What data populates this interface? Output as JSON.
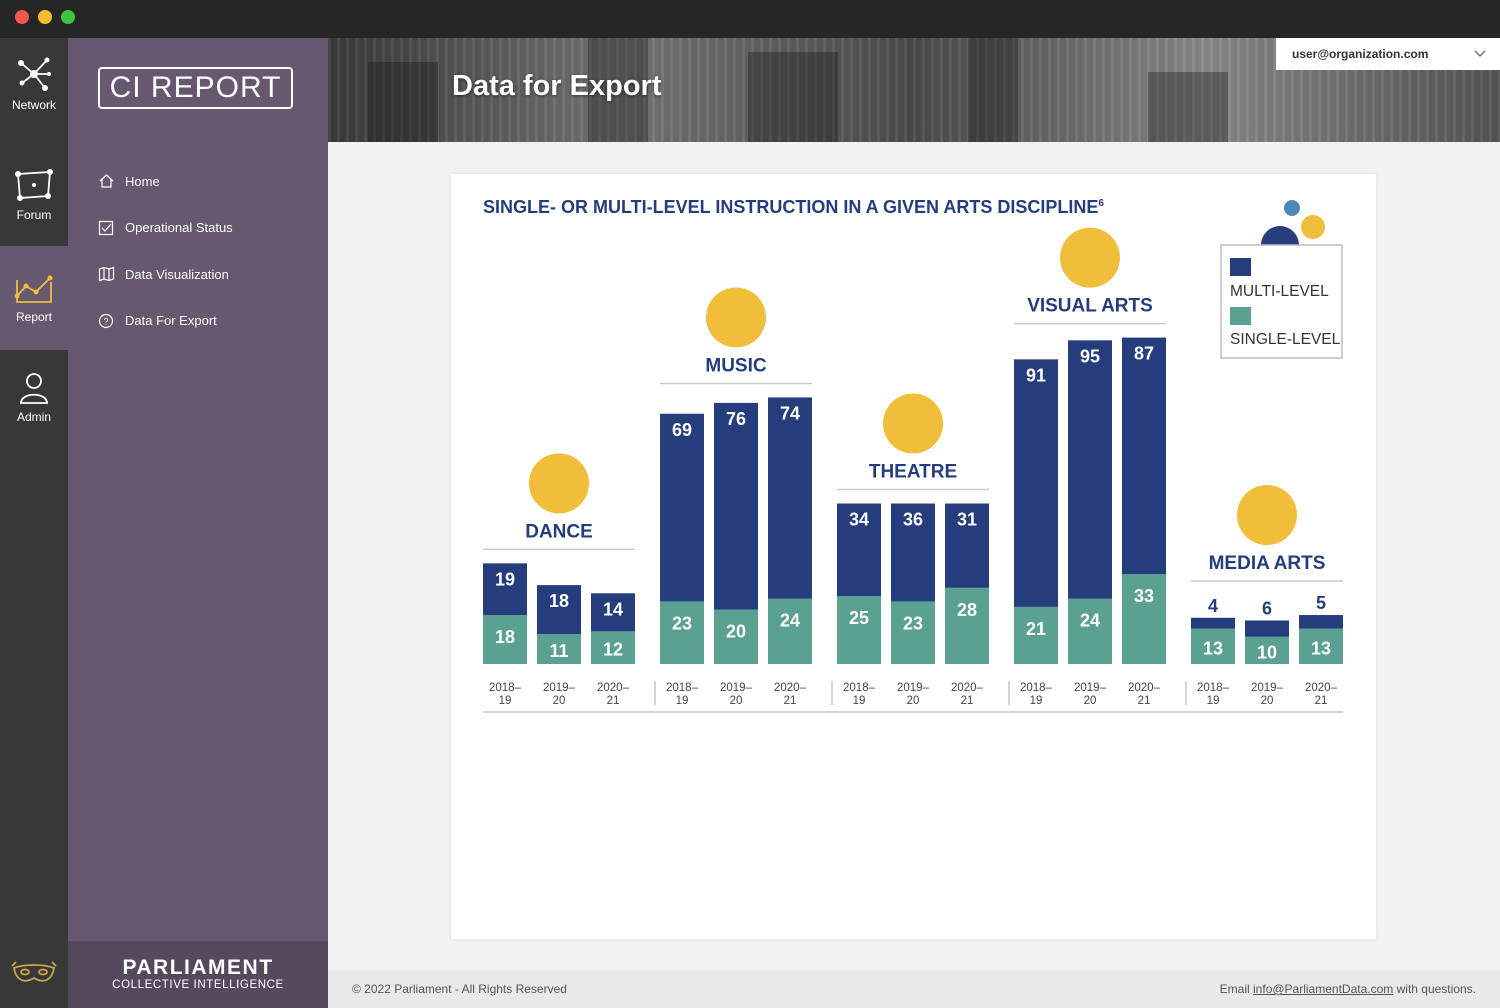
{
  "rail": {
    "items": [
      {
        "label": "Network",
        "icon": "network-icon"
      },
      {
        "label": "Forum",
        "icon": "forum-icon"
      },
      {
        "label": "Report",
        "icon": "report-icon"
      },
      {
        "label": "Admin",
        "icon": "admin-icon"
      }
    ]
  },
  "sidebar": {
    "logo_text": "CI REPORT",
    "items": [
      {
        "label": "Home",
        "icon": "home-icon"
      },
      {
        "label": "Operational Status",
        "icon": "checkbox-icon"
      },
      {
        "label": "Data Visualization",
        "icon": "map-icon"
      },
      {
        "label": "Data For Export",
        "icon": "help-circle-icon"
      }
    ],
    "footer_title": "PARLIAMENT",
    "footer_subtitle": "COLLECTIVE INTELLIGENCE"
  },
  "header": {
    "title": "Data for Export",
    "user": "user@organization.com"
  },
  "footer": {
    "copyright": "© 2022 Parliament - All Rights Reserved",
    "email_prefix": "Email",
    "email": "info@ParliamentData.com",
    "email_suffix": "with questions."
  },
  "chart_data": {
    "type": "bar",
    "stacked": true,
    "title": "SINGLE- OR MULTI-LEVEL INSTRUCTION IN A GIVEN ARTS DISCIPLINE",
    "title_footnote": "6",
    "groups": [
      "DANCE",
      "MUSIC",
      "THEATRE",
      "VISUAL ARTS",
      "MEDIA ARTS"
    ],
    "categories": [
      "2018–19",
      "2019–20",
      "2020–21"
    ],
    "series": [
      {
        "name": "MULTI-LEVEL",
        "color": "#253d7c",
        "values": [
          [
            19,
            18,
            14
          ],
          [
            69,
            76,
            74
          ],
          [
            34,
            36,
            31
          ],
          [
            91,
            95,
            87
          ],
          [
            4,
            6,
            5
          ]
        ]
      },
      {
        "name": "SINGLE-LEVEL",
        "color": "#5ba191",
        "values": [
          [
            18,
            11,
            12
          ],
          [
            23,
            20,
            24
          ],
          [
            25,
            23,
            28
          ],
          [
            21,
            24,
            33
          ],
          [
            13,
            10,
            13
          ]
        ]
      }
    ],
    "legend": "top-right",
    "accent_color": "#f0be3a"
  }
}
